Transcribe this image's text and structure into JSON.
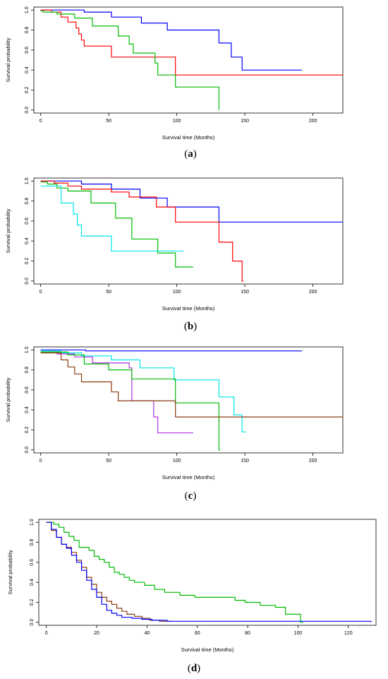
{
  "chart_data": [
    {
      "type": "line",
      "step": true,
      "panel_label": "a",
      "xlabel": "Survival time (Months)",
      "ylabel": "Survival probability",
      "xlim": [
        -5,
        222
      ],
      "ylim": [
        -0.03,
        1.03
      ],
      "xticks": [
        "0",
        "50",
        "100",
        "150",
        "200"
      ],
      "xtick_values": [
        0,
        50,
        100,
        150,
        200
      ],
      "yticks": [
        "0.0",
        "0.2",
        "0.4",
        "0.6",
        "0.8",
        "1.0"
      ],
      "ytick_values": [
        0,
        0.2,
        0.4,
        0.6,
        0.8,
        1.0
      ],
      "grid": false,
      "series": [
        {
          "color": "#0000ff",
          "x": [
            0,
            2,
            32,
            52,
            74,
            93,
            131,
            140,
            148,
            192
          ],
          "y": [
            1.0,
            1.0,
            0.98,
            0.93,
            0.87,
            0.8,
            0.67,
            0.53,
            0.4,
            0.4
          ]
        },
        {
          "color": "#ff0000",
          "x": [
            0,
            8,
            15,
            20,
            26,
            28,
            30,
            32,
            52,
            99,
            222
          ],
          "y": [
            1.0,
            0.98,
            0.93,
            0.88,
            0.82,
            0.76,
            0.7,
            0.64,
            0.53,
            0.35,
            0.35
          ]
        },
        {
          "color": "#00bb00",
          "x": [
            0,
            2,
            12,
            25,
            38,
            57,
            65,
            68,
            84,
            86,
            99,
            131
          ],
          "y": [
            0.99,
            0.98,
            0.96,
            0.92,
            0.84,
            0.74,
            0.66,
            0.57,
            0.47,
            0.35,
            0.23,
            0.0
          ]
        }
      ]
    },
    {
      "type": "line",
      "step": true,
      "panel_label": "b",
      "xlabel": "Survival time (Months)",
      "ylabel": "Survival probability",
      "xlim": [
        -5,
        222
      ],
      "ylim": [
        -0.03,
        1.03
      ],
      "xticks": [
        "0",
        "50",
        "100",
        "150",
        "200"
      ],
      "xtick_values": [
        0,
        50,
        100,
        150,
        200
      ],
      "yticks": [
        "0.0",
        "0.2",
        "0.4",
        "0.6",
        "0.8",
        "1.0"
      ],
      "ytick_values": [
        0,
        0.2,
        0.4,
        0.6,
        0.8,
        1.0
      ],
      "grid": false,
      "series": [
        {
          "color": "#0000ff",
          "x": [
            0,
            30,
            52,
            73,
            93,
            131,
            222
          ],
          "y": [
            1.0,
            0.97,
            0.92,
            0.83,
            0.74,
            0.59,
            0.59
          ]
        },
        {
          "color": "#ff0000",
          "x": [
            0,
            10,
            20,
            30,
            52,
            65,
            85,
            99,
            131,
            141,
            148,
            149
          ],
          "y": [
            1.0,
            0.98,
            0.95,
            0.92,
            0.89,
            0.84,
            0.74,
            0.59,
            0.39,
            0.2,
            0.0,
            0.0
          ]
        },
        {
          "color": "#00bb00",
          "x": [
            0,
            5,
            12,
            20,
            37,
            55,
            67,
            86,
            99,
            112
          ],
          "y": [
            0.99,
            0.97,
            0.93,
            0.9,
            0.78,
            0.63,
            0.42,
            0.28,
            0.14,
            0.14
          ]
        },
        {
          "color": "#00e5e5",
          "x": [
            0,
            15,
            24,
            27,
            30,
            52,
            105
          ],
          "y": [
            0.95,
            0.78,
            0.67,
            0.56,
            0.45,
            0.3,
            0.3
          ]
        }
      ]
    },
    {
      "type": "line",
      "step": true,
      "panel_label": "c",
      "xlabel": "Survival time (Months)",
      "ylabel": "Survival probability",
      "xlim": [
        -5,
        222
      ],
      "ylim": [
        -0.03,
        1.03
      ],
      "xticks": [
        "0",
        "50",
        "100",
        "150",
        "200"
      ],
      "xtick_values": [
        0,
        50,
        100,
        150,
        200
      ],
      "yticks": [
        "0.0",
        "0.2",
        "0.4",
        "0.6",
        "0.8",
        "1.0"
      ],
      "ytick_values": [
        0,
        0.2,
        0.4,
        0.6,
        0.8,
        1.0
      ],
      "grid": false,
      "series": [
        {
          "color": "#0000ff",
          "x": [
            0,
            33,
            192
          ],
          "y": [
            1.0,
            0.99,
            0.99
          ]
        },
        {
          "color": "#00e5e5",
          "x": [
            0,
            15,
            30,
            52,
            73,
            98,
            131,
            142,
            148,
            151
          ],
          "y": [
            0.99,
            0.97,
            0.94,
            0.9,
            0.82,
            0.7,
            0.53,
            0.35,
            0.18,
            0.18
          ]
        },
        {
          "color": "#b031e6",
          "x": [
            0,
            12,
            25,
            38,
            65,
            67,
            83,
            86,
            112
          ],
          "y": [
            0.98,
            0.96,
            0.93,
            0.87,
            0.82,
            0.49,
            0.33,
            0.17,
            0.17
          ]
        },
        {
          "color": "#00bb00",
          "x": [
            0,
            20,
            32,
            50,
            67,
            99,
            131,
            132
          ],
          "y": [
            0.98,
            0.95,
            0.86,
            0.8,
            0.71,
            0.47,
            0.0,
            0.0
          ]
        },
        {
          "color": "#8b3a0f",
          "x": [
            0,
            15,
            20,
            25,
            30,
            52,
            57,
            99,
            222
          ],
          "y": [
            0.97,
            0.9,
            0.83,
            0.76,
            0.68,
            0.58,
            0.49,
            0.33,
            0.33
          ]
        }
      ]
    },
    {
      "type": "line",
      "step": true,
      "panel_label": "d",
      "xlabel": "Survival time (Months)",
      "ylabel": "Survival probability",
      "xlim": [
        -3,
        131
      ],
      "ylim": [
        -0.03,
        1.03
      ],
      "xticks": [
        "0",
        "20",
        "40",
        "60",
        "80",
        "100",
        "120"
      ],
      "xtick_values": [
        0,
        20,
        40,
        60,
        80,
        100,
        120
      ],
      "yticks": [
        "0.0",
        "0.2",
        "0.4",
        "0.6",
        "0.8",
        "1.0"
      ],
      "ytick_values": [
        0,
        0.2,
        0.4,
        0.6,
        0.8,
        1.0
      ],
      "grid": false,
      "series": [
        {
          "color": "#00bb00",
          "x": [
            0,
            3,
            5,
            7,
            9,
            11,
            13,
            17,
            19,
            21,
            23,
            25,
            27,
            29,
            31,
            33,
            35,
            39,
            43,
            47,
            53,
            59,
            63,
            75,
            79,
            85,
            91,
            95,
            101,
            102
          ],
          "y": [
            1.0,
            0.98,
            0.95,
            0.9,
            0.86,
            0.82,
            0.75,
            0.72,
            0.66,
            0.63,
            0.6,
            0.55,
            0.5,
            0.48,
            0.45,
            0.42,
            0.4,
            0.37,
            0.33,
            0.3,
            0.27,
            0.25,
            0.25,
            0.22,
            0.2,
            0.17,
            0.15,
            0.08,
            0.0,
            0.0
          ]
        },
        {
          "color": "#8b3a0f",
          "x": [
            0,
            2,
            4,
            6,
            8,
            10,
            12,
            14,
            16,
            18,
            20,
            22,
            24,
            26,
            28,
            30,
            32,
            35,
            38,
            41,
            45,
            50
          ],
          "y": [
            1.0,
            0.92,
            0.85,
            0.78,
            0.75,
            0.7,
            0.62,
            0.55,
            0.45,
            0.38,
            0.3,
            0.25,
            0.21,
            0.18,
            0.14,
            0.11,
            0.08,
            0.06,
            0.04,
            0.02,
            0.01,
            0.01
          ]
        },
        {
          "color": "#0000ff",
          "x": [
            0,
            2,
            4,
            6,
            8,
            10,
            12,
            14,
            16,
            18,
            20,
            22,
            24,
            26,
            28,
            30,
            34,
            38,
            42,
            48,
            61,
            80,
            100,
            129
          ],
          "y": [
            1.0,
            0.93,
            0.85,
            0.78,
            0.74,
            0.67,
            0.6,
            0.52,
            0.42,
            0.33,
            0.25,
            0.18,
            0.12,
            0.09,
            0.07,
            0.05,
            0.04,
            0.03,
            0.02,
            0.01,
            0.01,
            0.01,
            0.01,
            0.0
          ]
        }
      ]
    }
  ]
}
